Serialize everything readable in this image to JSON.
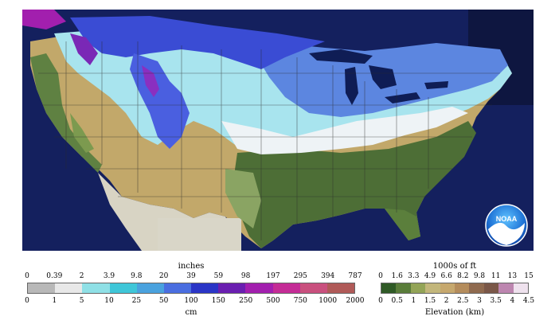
{
  "legend_snow": {
    "unit_top": "inches",
    "unit_bottom": "cm",
    "inches": [
      "0",
      "0.39",
      "2",
      "3.9",
      "9.8",
      "20",
      "39",
      "59",
      "98",
      "197",
      "295",
      "394",
      "787"
    ],
    "cm": [
      "0",
      "1",
      "5",
      "10",
      "25",
      "50",
      "100",
      "150",
      "250",
      "500",
      "750",
      "1000",
      "2000"
    ],
    "colors": [
      "#b8b8b8",
      "#e8e8e8",
      "#8fe0e6",
      "#3fc6d8",
      "#4aa2de",
      "#4a6ee0",
      "#2a35c6",
      "#6a1fb0",
      "#a21fae",
      "#c42c96",
      "#c9507e",
      "#b05a58"
    ]
  },
  "legend_elev": {
    "unit_top": "1000s of ft",
    "unit_bottom": "Elevation (km)",
    "ft": [
      "0",
      "1.6",
      "3.3",
      "4.9",
      "6.6",
      "8.2",
      "9.8",
      "11",
      "13",
      "15"
    ],
    "km": [
      "0",
      "0.5",
      "1",
      "1.5",
      "2",
      "2.5",
      "3",
      "3.5",
      "4",
      "4.5"
    ],
    "colors": [
      "#2f5a26",
      "#5a7d3a",
      "#93a457",
      "#c2b67b",
      "#c6a86e",
      "#b48c5c",
      "#8f6a4f",
      "#7a5748",
      "#bd86b0",
      "#efe2ee"
    ]
  },
  "logo": {
    "text": "NOAA"
  },
  "colors": {
    "ocean": "#14205e",
    "frame": "#0e1640"
  }
}
